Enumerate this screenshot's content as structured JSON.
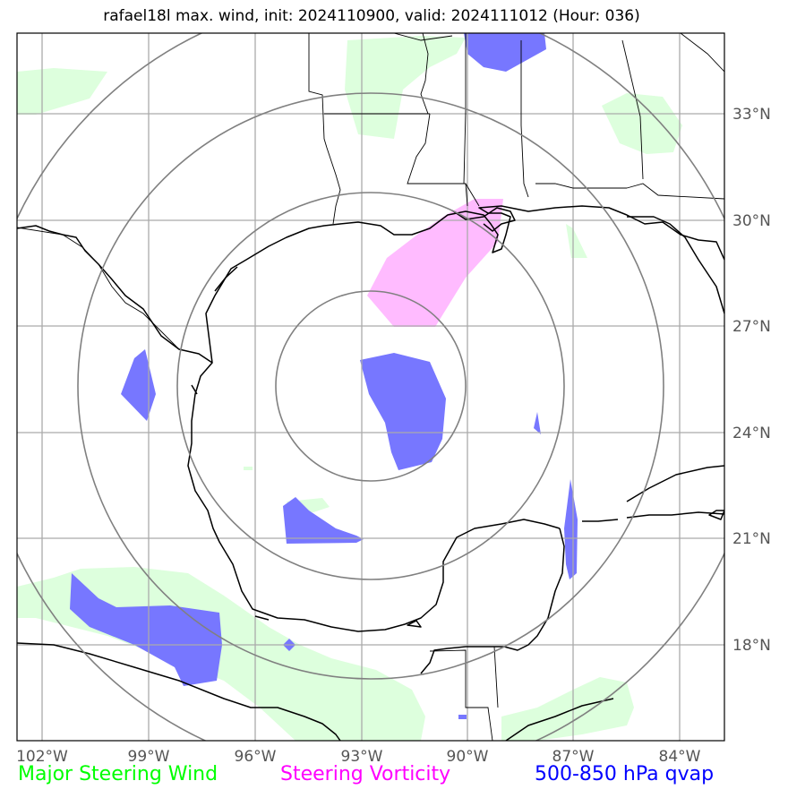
{
  "title": "rafael18l max. wind, init: 2024110900, valid: 2024111012 (Hour: 036)",
  "map": {
    "storm": "rafael18l",
    "init": "2024110900",
    "valid": "2024111012",
    "forecast_hour": "036",
    "lon_ticks": [
      "102°W",
      "99°W",
      "96°W",
      "93°W",
      "90°W",
      "87°W",
      "84°W"
    ],
    "lat_ticks": [
      "33°N",
      "30°N",
      "27°N",
      "24°N",
      "21°N",
      "18°N"
    ]
  },
  "legend": {
    "steering_wind": {
      "label": "Major Steering Wind",
      "color": "#00ff00",
      "fill": "#ddffdd"
    },
    "steering_vorticity": {
      "label": "Steering Vorticity",
      "color": "#ff00ff",
      "fill": "#ffbbff"
    },
    "qvap": {
      "label": "500-850 hPa qvap",
      "color": "#0000ff",
      "fill": "#7777ff"
    }
  },
  "colors": {
    "gridline": "#aaaaaa",
    "range_ring": "#808080",
    "coastline": "#000000"
  }
}
